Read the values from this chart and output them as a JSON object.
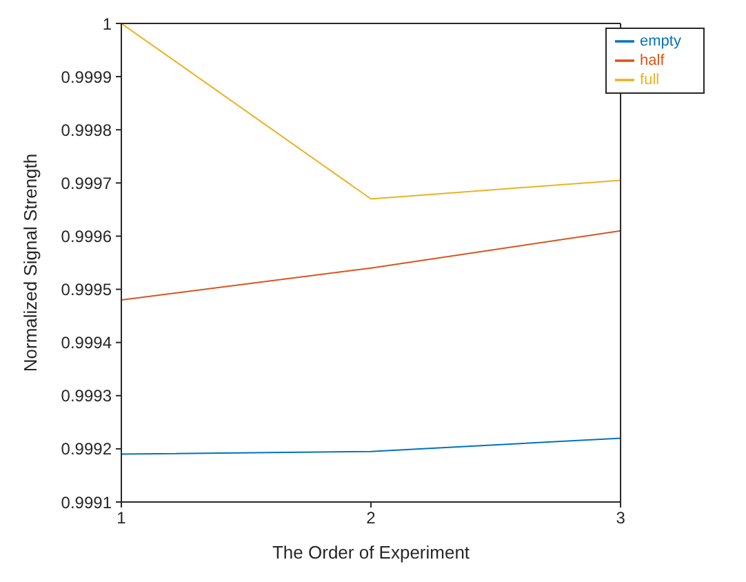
{
  "chart_data": {
    "type": "line",
    "xlabel": "The Order of Experiment",
    "ylabel": "Normalized Signal Strength",
    "x": [
      1,
      2,
      3
    ],
    "series": [
      {
        "name": "empty",
        "color": "#0072bd",
        "values": [
          0.99919,
          0.999195,
          0.99922
        ]
      },
      {
        "name": "half",
        "color": "#d95319",
        "values": [
          0.99948,
          0.99954,
          0.99961
        ]
      },
      {
        "name": "full",
        "color": "#edb120",
        "values": [
          1,
          0.99967,
          0.999705
        ]
      }
    ],
    "xlim": [
      1,
      3
    ],
    "xticks": [
      1,
      2,
      3
    ],
    "ylim": [
      0.9991,
      1
    ],
    "yticks": [
      0.9991,
      0.9992,
      0.9993,
      0.9994,
      0.9995,
      0.9996,
      0.9997,
      0.9998,
      0.9999,
      1
    ],
    "grid": false,
    "legend": "top right",
    "marker": "none",
    "line_style": "solid"
  }
}
